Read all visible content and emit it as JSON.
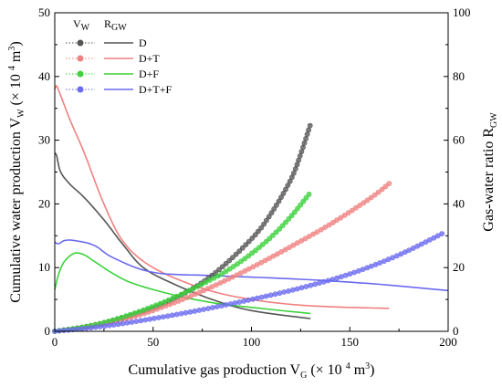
{
  "chart_data": {
    "type": "line",
    "x_label": {
      "main": "Cumulative gas production V",
      "sub": "G",
      "unit_pre": " (× 10 ",
      "sup": "4",
      "unit_post": " m",
      "sup2": "3",
      "close": ")"
    },
    "y_left_label": {
      "main": "Cumulative water production V",
      "sub": "W",
      "unit_pre": " (× 10 ",
      "sup": "4",
      "unit_post": " m",
      "sup2": "3",
      "close": ")"
    },
    "y_right_label": {
      "main": "Gas-water ratio R",
      "sub": "GW"
    },
    "xlim": [
      0,
      200
    ],
    "ylim_left": [
      0,
      50
    ],
    "ylim_right": [
      0,
      100
    ],
    "x_ticks": [
      "0",
      "50",
      "100",
      "150",
      "200"
    ],
    "y_left_ticks": [
      "0",
      "10",
      "20",
      "30",
      "40",
      "50"
    ],
    "y_right_ticks": [
      "0",
      "20",
      "40",
      "60",
      "80",
      "100"
    ],
    "legend": {
      "header_vw": {
        "main": "V",
        "sub": "W"
      },
      "header_rgw": {
        "main": "R",
        "sub": "GW"
      },
      "entries": [
        "D",
        "D+T",
        "D+F",
        "D+T+F"
      ]
    },
    "colors": {
      "D": "#555555",
      "D+T": "#f08080",
      "D+F": "#3cd23c",
      "D+T+F": "#6a6af0"
    },
    "vw_series": [
      {
        "name": "D",
        "x": [
          0,
          20,
          40,
          60,
          80,
          100,
          110,
          120,
          125,
          130
        ],
        "y": [
          0,
          1.0,
          2.6,
          5.0,
          8.8,
          14.5,
          18.5,
          23.8,
          27.8,
          32.5
        ]
      },
      {
        "name": "D+T",
        "x": [
          0,
          20,
          40,
          60,
          80,
          100,
          120,
          140,
          160,
          170
        ],
        "y": [
          0,
          0.9,
          2.3,
          4.4,
          7.0,
          10.0,
          13.3,
          16.8,
          20.8,
          23.2
        ]
      },
      {
        "name": "D+F",
        "x": [
          0,
          20,
          40,
          60,
          80,
          90,
          100,
          110,
          120,
          130
        ],
        "y": [
          0,
          1.0,
          2.8,
          5.2,
          8.2,
          10.0,
          12.2,
          14.8,
          18.0,
          21.8
        ]
      },
      {
        "name": "D+T+F",
        "x": [
          0,
          25,
          50,
          75,
          100,
          125,
          150,
          175,
          198
        ],
        "y": [
          0,
          0.8,
          2.0,
          3.4,
          5.0,
          6.8,
          9.0,
          12.0,
          15.5
        ]
      }
    ],
    "rgw_series": [
      {
        "name": "D",
        "x": [
          0,
          1,
          3,
          8,
          15,
          25,
          35,
          45,
          60,
          80,
          100,
          130
        ],
        "y": [
          56,
          55,
          50,
          46,
          42,
          35,
          27,
          20,
          15,
          10,
          6.5,
          4
        ]
      },
      {
        "name": "D+T",
        "x": [
          0,
          1,
          3,
          8,
          15,
          25,
          35,
          50,
          75,
          100,
          130,
          170
        ],
        "y": [
          76,
          77,
          74,
          66,
          56,
          40,
          28,
          20,
          13.5,
          10,
          8,
          7.2
        ]
      },
      {
        "name": "D+F",
        "x": [
          0,
          2,
          5,
          10,
          15,
          20,
          30,
          40,
          60,
          80,
          100,
          130
        ],
        "y": [
          13,
          18,
          22,
          24.5,
          24,
          22,
          18,
          15,
          11.5,
          9,
          7.5,
          5.6
        ]
      },
      {
        "name": "D+T+F",
        "x": [
          0,
          2,
          5,
          10,
          20,
          30,
          50,
          80,
          120,
          160,
          200
        ],
        "y": [
          28,
          27.5,
          28.5,
          28.5,
          27,
          23,
          18.5,
          17.5,
          16.5,
          15,
          12.8
        ]
      }
    ],
    "grid": false,
    "legend_position": "top-left"
  }
}
